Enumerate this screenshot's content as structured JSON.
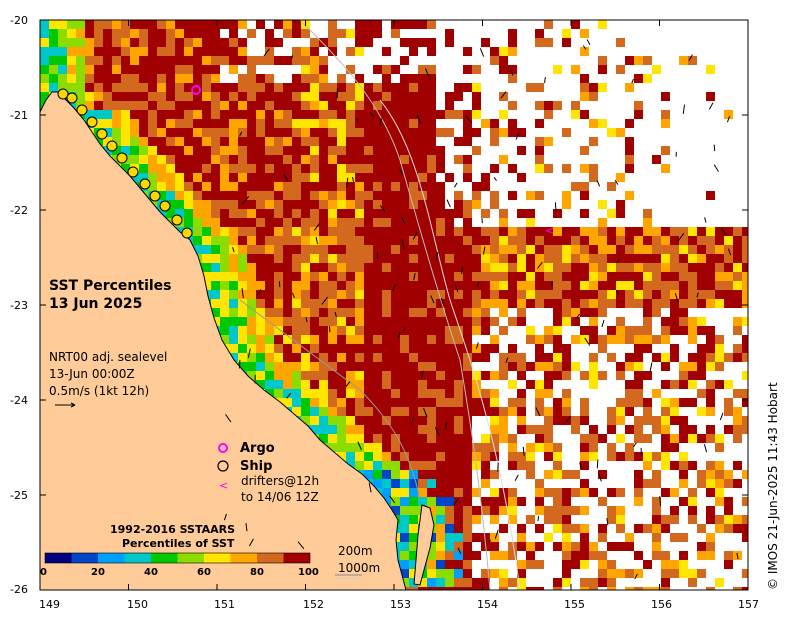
{
  "title": {
    "line1": "SST Percentiles",
    "line2": "13 Jun 2025"
  },
  "info": {
    "line1": "NRT00 adj. sealevel",
    "line2": "13-Jun 00:00Z",
    "line3": "0.5m/s (1kt 12h)"
  },
  "legend": {
    "argo": "Argo",
    "ship": "Ship",
    "drifters_symbol": "<",
    "drifters_line1": "drifters@12h",
    "drifters_line2": "to 14/06 12Z",
    "isobath_200": "200m",
    "isobath_1000": "1000m"
  },
  "colorbar": {
    "title_line1": "1992-2016 SSTAARS",
    "title_line2": "Percentiles of SST",
    "ticks": [
      "0",
      "20",
      "40",
      "60",
      "80",
      "100"
    ],
    "colors": [
      "#000080",
      "#0046c8",
      "#00a0ff",
      "#00c8c8",
      "#00c800",
      "#8cdc00",
      "#ffe600",
      "#ffa500",
      "#d2691e",
      "#a00000"
    ]
  },
  "axes": {
    "lat_ticks": [
      "-20",
      "-21",
      "-22",
      "-23",
      "-24",
      "-25",
      "-26"
    ],
    "lon_ticks": [
      "149",
      "150",
      "151",
      "152",
      "153",
      "154",
      "155",
      "156",
      "157"
    ]
  },
  "credit": "© IMOS 21-Jun-2025 11:43 Hobart",
  "colors": {
    "land": "#ffcc99",
    "argo": "#ff00ff",
    "ship_fill": "#ffd700"
  }
}
